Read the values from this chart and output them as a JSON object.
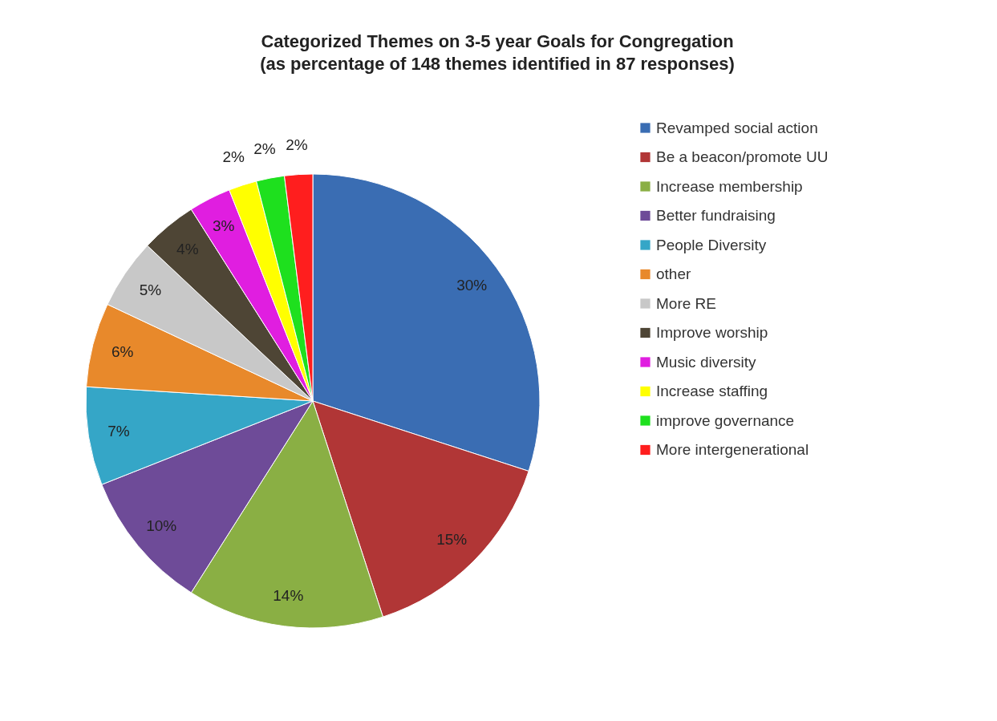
{
  "chart_data": {
    "type": "pie",
    "title": "Categorized Themes on 3-5 year Goals for Congregation",
    "subtitle": "(as percentage of 148 themes identified in 87 responses)",
    "categories": [
      "Revamped social action",
      "Be a beacon/promote UU",
      "Increase membership",
      "Better fundraising",
      "People Diversity",
      "other",
      "More RE",
      "Improve worship",
      "Music diversity",
      "Increase staffing",
      "improve governance",
      "More intergenerational"
    ],
    "values": [
      30,
      15,
      14,
      10,
      7,
      6,
      5,
      4,
      3,
      2,
      2,
      2
    ],
    "value_labels": [
      "30%",
      "15%",
      "14%",
      "10%",
      "7%",
      "6%",
      "5%",
      "4%",
      "3%",
      "2%",
      "2%",
      "2%"
    ],
    "colors": [
      "#3a6db3",
      "#b13636",
      "#8aaf44",
      "#6e4b98",
      "#35a6c7",
      "#e8892b",
      "#c8c8c8",
      "#4e4535",
      "#e01ee0",
      "#ffff00",
      "#1ee01e",
      "#ff1e1e"
    ],
    "legend": "right"
  }
}
